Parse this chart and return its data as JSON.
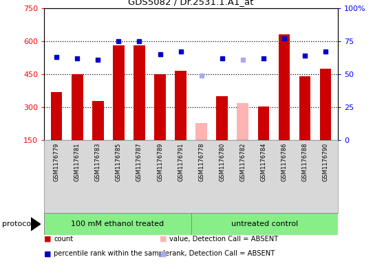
{
  "title": "GDS5082 / Dr.2531.1.A1_at",
  "samples": [
    "GSM1176779",
    "GSM1176781",
    "GSM1176783",
    "GSM1176785",
    "GSM1176787",
    "GSM1176789",
    "GSM1176791",
    "GSM1176778",
    "GSM1176780",
    "GSM1176782",
    "GSM1176784",
    "GSM1176786",
    "GSM1176788",
    "GSM1176790"
  ],
  "counts": [
    370,
    450,
    330,
    580,
    580,
    450,
    465,
    null,
    350,
    null,
    305,
    630,
    440,
    475
  ],
  "absent_counts": [
    null,
    null,
    null,
    null,
    null,
    null,
    null,
    230,
    null,
    320,
    null,
    null,
    null,
    null
  ],
  "ranks": [
    63,
    62,
    61,
    75,
    75,
    65,
    67,
    null,
    62,
    null,
    62,
    77,
    64,
    67
  ],
  "absent_ranks": [
    null,
    null,
    null,
    null,
    null,
    null,
    null,
    49,
    null,
    61,
    null,
    null,
    null,
    null
  ],
  "group1_count": 7,
  "group1_label": "100 mM ethanol treated",
  "group2_label": "untreated control",
  "ylim_left": [
    150,
    750
  ],
  "ylim_right": [
    0,
    100
  ],
  "yticks_left": [
    150,
    300,
    450,
    600,
    750
  ],
  "yticks_right": [
    0,
    25,
    50,
    75,
    100
  ],
  "grid_lines": [
    300,
    450,
    600
  ],
  "bar_color": "#cc0000",
  "absent_bar_color": "#ffb3b3",
  "rank_color": "#0000cc",
  "absent_rank_color": "#aaaaee",
  "group_color": "#88ee88",
  "bg_color": "#d8d8d8",
  "bar_width": 0.55
}
